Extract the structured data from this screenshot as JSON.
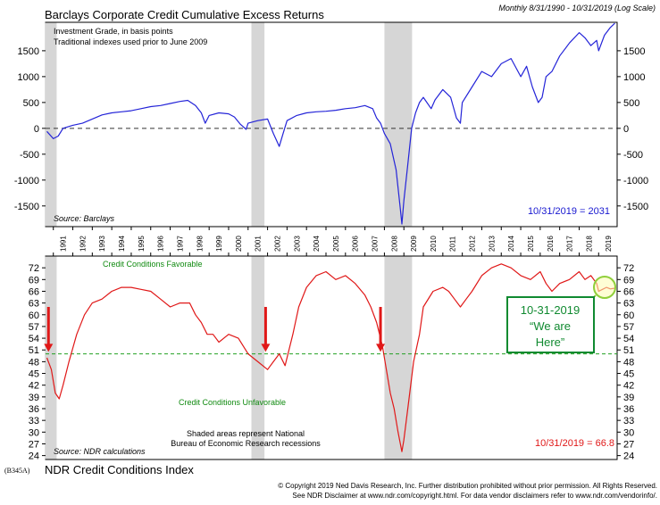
{
  "header": {
    "top_title": "Barclays Corporate Credit Cumulative Excess Returns",
    "scale_note": "Monthly 8/31/1990 - 10/31/2019 (Log Scale)"
  },
  "footer": {
    "chart_code": "(B345A)",
    "bottom_title": "NDR Credit Conditions Index",
    "copyright_line": "© Copyright 2019 Ned Davis Research, Inc.  Further distribution prohibited without prior permission.  All Rights Reserved.",
    "disclaimer_line": "See NDR Disclaimer at www.ndr.com/copyright.html.  For data vendor disclaimers refer to www.ndr.com/vendorinfo/."
  },
  "chart_data": [
    {
      "type": "line",
      "title": "Barclays Corporate Credit Cumulative Excess Returns",
      "notes": [
        "Investment Grade, in basis points",
        "Traditional indexes used prior to June 2009"
      ],
      "source": "Source: Barclays",
      "last_value_label": "10/31/2019 = 2031",
      "color": "#2424d8",
      "ylim": [
        -1900,
        2050
      ],
      "yticks": [
        -1500,
        -1000,
        -500,
        0,
        500,
        1000,
        1500
      ],
      "reference_line": 0,
      "x": [
        1990.67,
        1991.0,
        1991.25,
        1991.5,
        1992.0,
        1992.5,
        1993.0,
        1993.5,
        1994.0,
        1994.5,
        1995.0,
        1995.5,
        1996.0,
        1996.5,
        1997.0,
        1997.5,
        1997.9,
        1998.3,
        1998.6,
        1998.8,
        1999.0,
        1999.5,
        2000.0,
        2000.3,
        2000.6,
        2000.9,
        2001.0,
        2001.5,
        2002.0,
        2002.3,
        2002.6,
        2002.8,
        2003.0,
        2003.5,
        2004.0,
        2004.5,
        2005.0,
        2005.5,
        2006.0,
        2006.5,
        2007.0,
        2007.4,
        2007.6,
        2007.8,
        2008.0,
        2008.3,
        2008.6,
        2008.8,
        2008.9,
        2009.0,
        2009.2,
        2009.4,
        2009.6,
        2009.8,
        2010.0,
        2010.4,
        2010.6,
        2011.0,
        2011.4,
        2011.7,
        2011.9,
        2012.0,
        2012.5,
        2013.0,
        2013.5,
        2014.0,
        2014.5,
        2015.0,
        2015.3,
        2015.6,
        2015.9,
        2016.1,
        2016.3,
        2016.6,
        2017.0,
        2017.5,
        2018.0,
        2018.3,
        2018.6,
        2018.9,
        2019.0,
        2019.3,
        2019.6,
        2019.83
      ],
      "y": [
        -60,
        -200,
        -150,
        0,
        60,
        100,
        180,
        260,
        300,
        320,
        340,
        380,
        420,
        440,
        480,
        520,
        540,
        440,
        300,
        100,
        250,
        300,
        280,
        220,
        80,
        -20,
        100,
        150,
        180,
        -100,
        -350,
        -100,
        150,
        250,
        300,
        320,
        330,
        350,
        380,
        400,
        440,
        380,
        200,
        100,
        -100,
        -300,
        -800,
        -1500,
        -1850,
        -1400,
        -700,
        0,
        300,
        500,
        600,
        380,
        550,
        750,
        600,
        200,
        100,
        500,
        800,
        1100,
        1000,
        1250,
        1350,
        1000,
        1200,
        800,
        500,
        600,
        1000,
        1100,
        1400,
        1650,
        1850,
        1750,
        1600,
        1700,
        1500,
        1800,
        1950,
        2031
      ],
      "recessions": [
        [
          1990.58,
          1991.17
        ],
        [
          2001.17,
          2001.84
        ],
        [
          2008.0,
          2009.42
        ]
      ]
    },
    {
      "type": "line",
      "title": "NDR Credit Conditions Index",
      "source": "Source: NDR calculations",
      "last_value_label": "10/31/2019 = 66.8",
      "color": "#e01818",
      "ylim": [
        23,
        75
      ],
      "yticks": [
        24,
        27,
        30,
        33,
        36,
        39,
        42,
        45,
        48,
        51,
        54,
        57,
        60,
        63,
        66,
        69,
        72
      ],
      "reference_line": 50,
      "favorable_label": "Credit Conditions Favorable",
      "unfavorable_label": "Credit Conditions Unfavorable",
      "recession_note": [
        "Shaded areas represent National",
        "Bureau of Economic Research recessions"
      ],
      "callout": [
        "10-31-2019",
        "“We are",
        "Here”"
      ],
      "arrow_years": [
        1990.75,
        2001.9,
        2007.8
      ],
      "x": [
        1990.67,
        1990.9,
        1991.1,
        1991.3,
        1991.5,
        1991.8,
        1992.2,
        1992.6,
        1993.0,
        1993.5,
        1994.0,
        1994.5,
        1995.0,
        1995.5,
        1996.0,
        1996.5,
        1997.0,
        1997.5,
        1998.0,
        1998.3,
        1998.6,
        1998.9,
        1999.2,
        1999.5,
        2000.0,
        2000.5,
        2001.0,
        2001.5,
        2002.0,
        2002.3,
        2002.6,
        2002.9,
        2003.3,
        2003.6,
        2004.0,
        2004.5,
        2005.0,
        2005.5,
        2006.0,
        2006.5,
        2007.0,
        2007.3,
        2007.6,
        2007.9,
        2008.1,
        2008.3,
        2008.5,
        2008.7,
        2008.9,
        2009.0,
        2009.2,
        2009.5,
        2009.8,
        2010.0,
        2010.5,
        2011.0,
        2011.3,
        2011.6,
        2011.9,
        2012.2,
        2012.5,
        2013.0,
        2013.5,
        2014.0,
        2014.5,
        2015.0,
        2015.5,
        2016.0,
        2016.3,
        2016.6,
        2017.0,
        2017.5,
        2018.0,
        2018.3,
        2018.6,
        2018.9,
        2019.0,
        2019.2,
        2019.4,
        2019.6,
        2019.83
      ],
      "y": [
        49,
        46,
        40,
        38.5,
        42,
        48,
        55,
        60,
        63,
        64,
        66,
        67,
        67,
        66.5,
        66,
        64,
        62,
        63,
        63,
        60,
        58,
        55,
        55,
        53,
        55,
        54,
        50,
        48,
        46,
        48,
        50,
        47,
        55,
        62,
        67,
        70,
        71,
        69,
        70,
        68,
        65,
        62,
        58,
        52,
        46,
        40,
        36,
        30,
        25,
        28,
        36,
        48,
        55,
        62,
        66,
        67,
        66,
        64,
        62,
        64,
        66,
        70,
        72,
        73,
        72,
        70,
        69,
        71,
        68,
        66,
        68,
        69,
        71,
        69,
        70,
        68,
        66,
        66.5,
        67,
        66.6,
        66.8
      ]
    }
  ]
}
